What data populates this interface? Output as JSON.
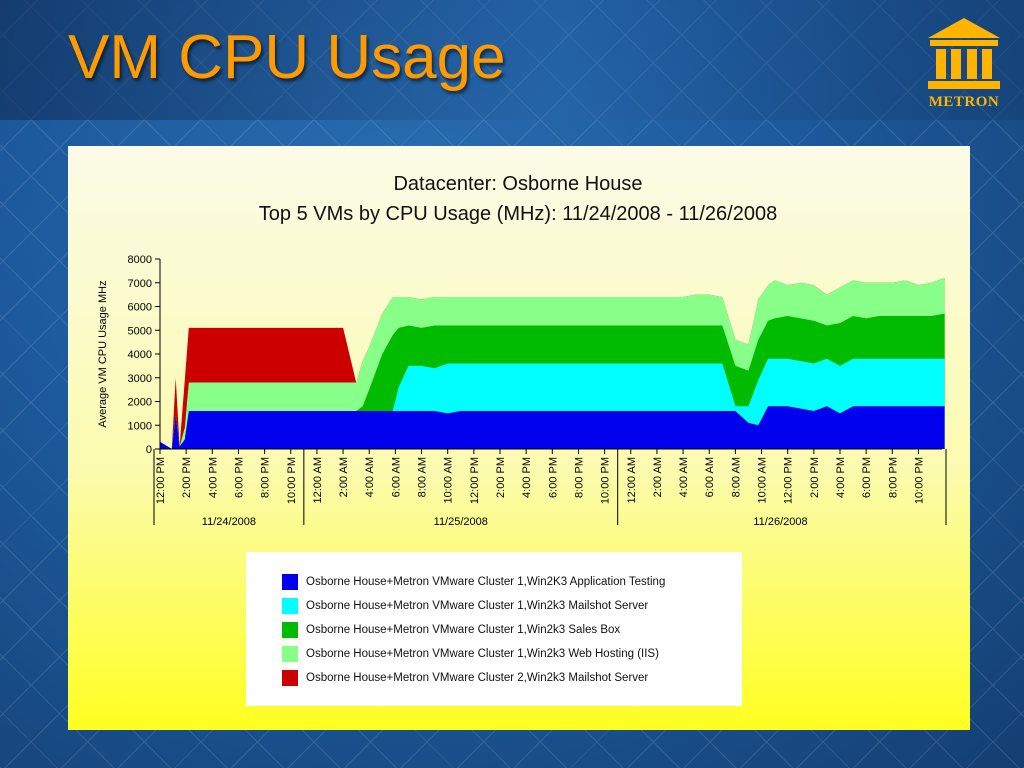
{
  "slide": {
    "title": "VM CPU Usage"
  },
  "logo": {
    "text": "METRON",
    "icon": "temple-columns-icon",
    "color": "#ffb400"
  },
  "chart_data": {
    "type": "area",
    "stacked": true,
    "title": "Datacenter: Osborne House",
    "subtitle": "Top 5 VMs by CPU Usage (MHz): 11/24/2008 - 11/26/2008",
    "ylabel": "Average VM CPU Usage MHz",
    "ylim": [
      0,
      8000
    ],
    "yticks": [
      0,
      1000,
      2000,
      3000,
      4000,
      5000,
      6000,
      7000,
      8000
    ],
    "xticks": [
      "12:00 PM",
      "2:00 PM",
      "4:00 PM",
      "6:00 PM",
      "8:00 PM",
      "10:00 PM",
      "12:00 AM",
      "2:00 AM",
      "4:00 AM",
      "6:00 AM",
      "8:00 AM",
      "10:00 AM",
      "12:00 PM",
      "2:00 PM",
      "4:00 PM",
      "6:00 PM",
      "8:00 PM",
      "10:00 PM",
      "12:00 AM",
      "2:00 AM",
      "4:00 AM",
      "6:00 AM",
      "8:00 AM",
      "10:00 AM",
      "12:00 PM",
      "2:00 PM",
      "4:00 PM",
      "6:00 PM",
      "8:00 PM",
      "10:00 PM"
    ],
    "date_groups": [
      {
        "label": "11/24/2008",
        "from": 0,
        "to": 6
      },
      {
        "label": "11/25/2008",
        "from": 6,
        "to": 18
      },
      {
        "label": "11/26/2008",
        "from": 18,
        "to": 30
      }
    ],
    "x_hours": [
      0,
      1,
      1.8,
      3,
      3.8,
      5,
      6,
      8,
      10,
      12,
      14,
      16,
      18,
      20,
      22,
      24,
      26,
      28,
      30,
      30.5,
      32,
      34,
      36,
      38,
      40,
      42,
      44,
      46,
      48,
      50,
      52,
      54,
      55,
      56,
      57,
      58,
      59,
      60,
      61,
      62,
      63,
      64,
      65,
      66,
      67,
      68,
      69,
      70,
      71,
      72,
      73,
      74,
      75,
      76,
      77,
      78,
      79,
      80,
      81,
      82,
      83,
      84,
      85,
      86,
      87,
      88,
      89,
      90,
      91,
      92,
      93,
      94,
      95,
      96,
      97,
      98,
      99,
      100,
      101,
      102,
      103,
      104,
      105,
      106,
      107,
      108,
      109,
      110,
      111,
      112,
      113,
      114,
      115,
      116,
      117,
      118,
      119,
      120
    ],
    "series": [
      {
        "name": "Osborne House+Metron VMware Cluster 1,Win2K3 Application Testing",
        "color": "#0000ee",
        "values": [
          0,
          0,
          1400,
          100,
          600,
          1600,
          1600,
          1600,
          1600,
          1600,
          1600,
          1600,
          1600,
          1600,
          1600,
          1600,
          1600,
          1600,
          1600,
          1600,
          1600,
          1600,
          1600,
          1600,
          1600,
          1600,
          1600,
          1500,
          1600,
          1600,
          1600,
          1600,
          1600,
          1600,
          1600,
          1600,
          1600,
          1600,
          1600,
          1600,
          1600,
          1600,
          1600,
          1600,
          1600,
          1600,
          1600,
          1600,
          1600,
          1600,
          1600,
          1600,
          1600,
          1600,
          1600,
          1600,
          1600,
          1600,
          1600,
          1600,
          1600,
          1600,
          1600,
          1600,
          1600,
          1600,
          1600,
          1600,
          1600,
          1600,
          1600,
          1600,
          1600,
          1600,
          1600,
          1600,
          1600,
          1600,
          1600,
          1600,
          1600,
          1600,
          1600,
          1600,
          1600,
          1600,
          1600,
          1600,
          1600,
          1600,
          1600,
          1600,
          1600,
          1600,
          1600,
          1600,
          1600,
          1600
        ]
      },
      {
        "name": "Osborne House+Metron VMware Cluster 1,Win2k3 Mailshot Server",
        "color": "#00ffff",
        "values": [
          0,
          0,
          0,
          0,
          0,
          0,
          0,
          0,
          0,
          0,
          0,
          0,
          0,
          0,
          0,
          0,
          0,
          0,
          0,
          0,
          0,
          0,
          0,
          0,
          0,
          0,
          0,
          0,
          0,
          0,
          0,
          0,
          0,
          0,
          0,
          0,
          0,
          0,
          0,
          0,
          0,
          0,
          0,
          0,
          0,
          0,
          0,
          0,
          0,
          0,
          0,
          0,
          0,
          0,
          0,
          0,
          0,
          0,
          0,
          0,
          0,
          0,
          0,
          0,
          0,
          0,
          0,
          0,
          0,
          0,
          0,
          0,
          0,
          0,
          0,
          0,
          0,
          0,
          0,
          0,
          0,
          0,
          0,
          0,
          0,
          0,
          0,
          0,
          0,
          0,
          0,
          0,
          0,
          0,
          0,
          0,
          0,
          0
        ]
      },
      {
        "name": "Osborne House+Metron VMware Cluster 1,Win2k3 Sales Box",
        "color": "#00bb00",
        "values": []
      },
      {
        "name": "Osborne House+Metron VMware Cluster 1,Win2k3 Web Hosting (IIS)",
        "color": "#88ff88",
        "values": []
      },
      {
        "name": "Osborne House+Metron VMware Cluster 2,Win2k3 Mailshot Server",
        "color": "#cc0000",
        "values": []
      }
    ],
    "stack_points": {
      "x_hours": [
        0,
        1.8,
        2.4,
        3.0,
        3.8,
        4.4,
        5.0,
        6.0,
        8.0,
        10,
        12,
        14,
        16,
        18,
        20,
        22,
        24,
        26,
        28,
        30,
        31,
        32,
        34,
        35.6,
        36.5,
        38,
        40,
        42,
        44,
        46,
        48,
        50,
        52,
        54,
        56,
        58,
        60,
        62,
        64,
        66,
        68,
        70,
        72,
        74,
        76,
        78,
        80,
        82,
        84,
        86,
        88,
        90,
        91.5,
        93,
        94,
        96,
        98,
        100,
        102,
        104,
        106,
        108,
        110,
        112,
        114,
        116,
        118,
        120
      ],
      "cum_application_testing": [
        300,
        0,
        1400,
        100,
        400,
        1600,
        1600,
        1600,
        1600,
        1600,
        1600,
        1600,
        1600,
        1600,
        1600,
        1600,
        1600,
        1600,
        1600,
        1600,
        1600,
        1600,
        1600,
        1600,
        1600,
        1600,
        1600,
        1600,
        1500,
        1600,
        1600,
        1600,
        1600,
        1600,
        1600,
        1600,
        1600,
        1600,
        1600,
        1600,
        1600,
        1600,
        1600,
        1600,
        1600,
        1600,
        1600,
        1600,
        1600,
        1600,
        1600,
        1100,
        1000,
        1800,
        1800,
        1800,
        1700,
        1600,
        1800,
        1500,
        1800,
        1800,
        1800,
        1800,
        1800,
        1800,
        1800,
        1800
      ],
      "cum_mailshot_server": [
        300,
        0,
        1400,
        100,
        400,
        1600,
        1600,
        1600,
        1600,
        1600,
        1600,
        1600,
        1600,
        1600,
        1600,
        1600,
        1600,
        1600,
        1600,
        1600,
        1600,
        1600,
        1600,
        1600,
        2600,
        3500,
        3500,
        3400,
        3600,
        3600,
        3600,
        3600,
        3600,
        3600,
        3600,
        3600,
        3600,
        3600,
        3600,
        3600,
        3600,
        3600,
        3600,
        3600,
        3600,
        3600,
        3600,
        3600,
        3600,
        3600,
        1800,
        1800,
        2900,
        3800,
        3800,
        3800,
        3700,
        3600,
        3800,
        3500,
        3800,
        3800,
        3800,
        3800,
        3800,
        3800,
        3800,
        3800
      ],
      "cum_sales_box": [
        300,
        0,
        1400,
        100,
        400,
        1600,
        1600,
        1600,
        1600,
        1600,
        1600,
        1600,
        1600,
        1600,
        1600,
        1600,
        1600,
        1600,
        1600,
        1600,
        1800,
        2500,
        4000,
        4800,
        5100,
        5200,
        5100,
        5200,
        5200,
        5200,
        5200,
        5200,
        5200,
        5200,
        5200,
        5200,
        5200,
        5200,
        5200,
        5200,
        5200,
        5200,
        5200,
        5200,
        5200,
        5200,
        5200,
        5200,
        5200,
        5200,
        3500,
        3300,
        4600,
        5400,
        5500,
        5600,
        5500,
        5400,
        5200,
        5300,
        5600,
        5500,
        5600,
        5600,
        5600,
        5600,
        5600,
        5700
      ],
      "cum_web_hosting": [
        300,
        0,
        1400,
        100,
        900,
        2800,
        2800,
        2800,
        2800,
        2800,
        2800,
        2800,
        2800,
        2800,
        2800,
        2800,
        2800,
        2800,
        2800,
        2800,
        3700,
        4300,
        5700,
        6400,
        6400,
        6400,
        6300,
        6400,
        6400,
        6400,
        6400,
        6400,
        6400,
        6400,
        6400,
        6400,
        6400,
        6400,
        6400,
        6400,
        6400,
        6400,
        6400,
        6400,
        6400,
        6400,
        6400,
        6500,
        6500,
        6400,
        4600,
        4400,
        6300,
        6900,
        7100,
        6900,
        7000,
        6900,
        6500,
        6800,
        7100,
        7000,
        7000,
        7000,
        7100,
        6900,
        7000,
        7200
      ],
      "cum_mailshot_cluster2": [
        300,
        0,
        3000,
        100,
        2900,
        5100,
        5100,
        5100,
        5100,
        5100,
        5100,
        5100,
        5100,
        5100,
        5100,
        5100,
        5100,
        5100,
        5100,
        2800,
        3700,
        4300,
        5700,
        6400,
        6400,
        6400,
        6300,
        6400,
        6400,
        6400,
        6400,
        6400,
        6400,
        6400,
        6400,
        6400,
        6400,
        6400,
        6400,
        6400,
        6400,
        6400,
        6400,
        6400,
        6400,
        6400,
        6400,
        6500,
        6500,
        6400,
        4600,
        4400,
        6300,
        6900,
        7100,
        6900,
        7000,
        6900,
        6500,
        6800,
        7100,
        7000,
        7000,
        7000,
        7100,
        6900,
        7000,
        7200
      ]
    },
    "legend": [
      {
        "label": "Osborne House+Metron VMware Cluster 1,Win2K3 Application Testing",
        "color": "#0000ee"
      },
      {
        "label": "Osborne House+Metron VMware Cluster 1,Win2k3 Mailshot Server",
        "color": "#00ffff"
      },
      {
        "label": "Osborne House+Metron VMware Cluster 1,Win2k3 Sales Box",
        "color": "#00bb00"
      },
      {
        "label": "Osborne House+Metron VMware Cluster 1,Win2k3 Web Hosting (IIS)",
        "color": "#88ff88"
      },
      {
        "label": "Osborne House+Metron VMware Cluster 2,Win2k3 Mailshot Server",
        "color": "#cc0000"
      }
    ],
    "legend_position": "bottom",
    "grid": false
  }
}
